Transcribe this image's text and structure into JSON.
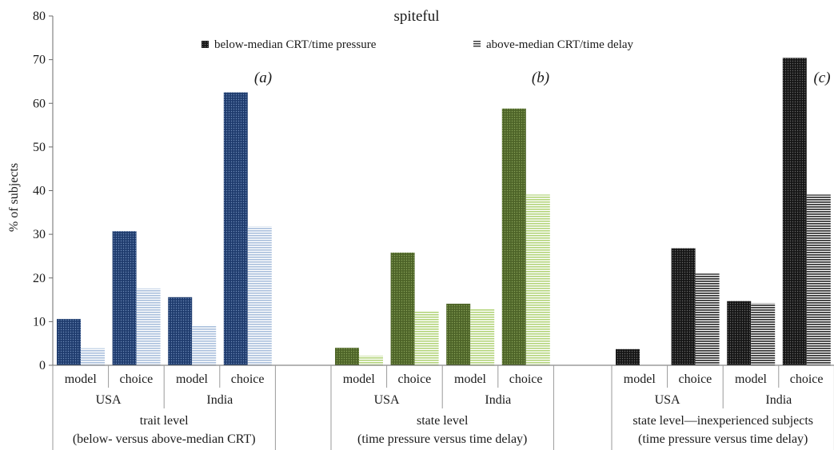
{
  "chart_data": {
    "type": "bar",
    "title": "spiteful",
    "ylabel": "% of subjects",
    "ylim": [
      0,
      80
    ],
    "yticks": [
      0,
      10,
      20,
      30,
      40,
      50,
      60,
      70,
      80
    ],
    "grid": false,
    "legend": {
      "position": "top-center",
      "entries": [
        "below-median CRT/time pressure",
        "above-median CRT/time delay"
      ]
    },
    "panels": [
      {
        "tag": "(a)",
        "group_label": [
          "trait level",
          "(below- versus above-median CRT)"
        ],
        "colors": {
          "dark": "#1f3c6e",
          "light": "#a9bfdc"
        },
        "countries": [
          "USA",
          "India"
        ],
        "categories": [
          "model",
          "choice",
          "model",
          "choice"
        ],
        "series": [
          {
            "name": "below-median CRT/time pressure",
            "values": [
              10.6,
              30.7,
              15.6,
              62.5
            ]
          },
          {
            "name": "above-median CRT/time delay",
            "values": [
              3.9,
              17.6,
              9.2,
              31.8
            ]
          }
        ]
      },
      {
        "tag": "(b)",
        "group_label": [
          "state level",
          "(time pressure versus time delay)"
        ],
        "colors": {
          "dark": "#4d6428",
          "light": "#b3d47a"
        },
        "countries": [
          "USA",
          "India"
        ],
        "categories": [
          "model",
          "choice",
          "model",
          "choice"
        ],
        "series": [
          {
            "name": "below-median CRT/time pressure",
            "values": [
              4.0,
              25.8,
              14.1,
              58.8
            ]
          },
          {
            "name": "above-median CRT/time delay",
            "values": [
              2.2,
              12.5,
              12.9,
              39.1
            ]
          }
        ]
      },
      {
        "tag": "(c)",
        "group_label": [
          "state level—inexperienced subjects",
          "(time pressure versus time delay)"
        ],
        "colors": {
          "dark": "#161616",
          "light": "#5a5a5a"
        },
        "countries": [
          "USA",
          "India"
        ],
        "categories": [
          "model",
          "choice",
          "model",
          "choice"
        ],
        "series": [
          {
            "name": "below-median CRT/time pressure",
            "values": [
              3.7,
              26.8,
              14.7,
              70.4
            ]
          },
          {
            "name": "above-median CRT/time delay",
            "values": [
              0,
              21.0,
              14.2,
              39.1
            ]
          }
        ]
      }
    ]
  }
}
